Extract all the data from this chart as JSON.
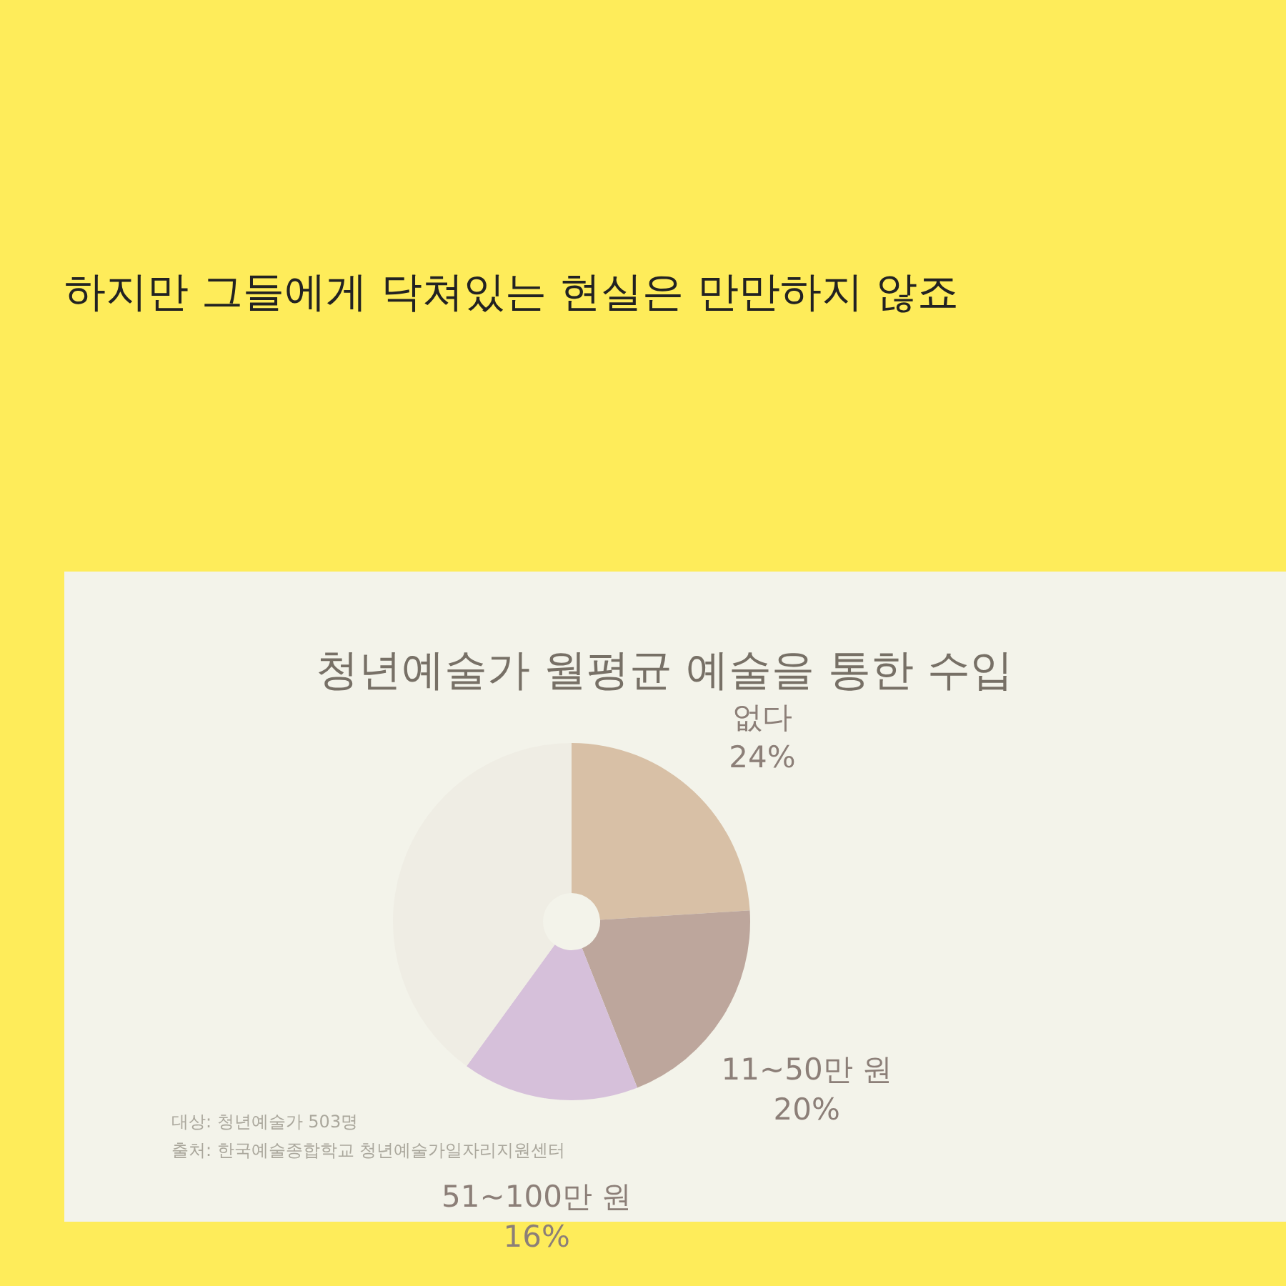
{
  "chart_data": {
    "type": "donut",
    "title": "하지만 그들에게 닥쳐있는 현실은 만만하지 않죠",
    "subtitle": "청년예술가 월평균 예술을 통한 수입",
    "categories": [
      "없다",
      "11~50만 원",
      "51~100만 원",
      null
    ],
    "values": [
      24,
      20,
      16,
      40
    ],
    "colors": [
      "#d8c0a6",
      "#bda69c",
      "#d6c0da",
      "#efede4"
    ],
    "value_labels": [
      "24%",
      "20%",
      "16%",
      null
    ],
    "legend": false,
    "annotations": [
      "대상: 청년예술가 503명",
      "출처: 한국예술종합학교 청년예술가일자리지원센터"
    ]
  }
}
